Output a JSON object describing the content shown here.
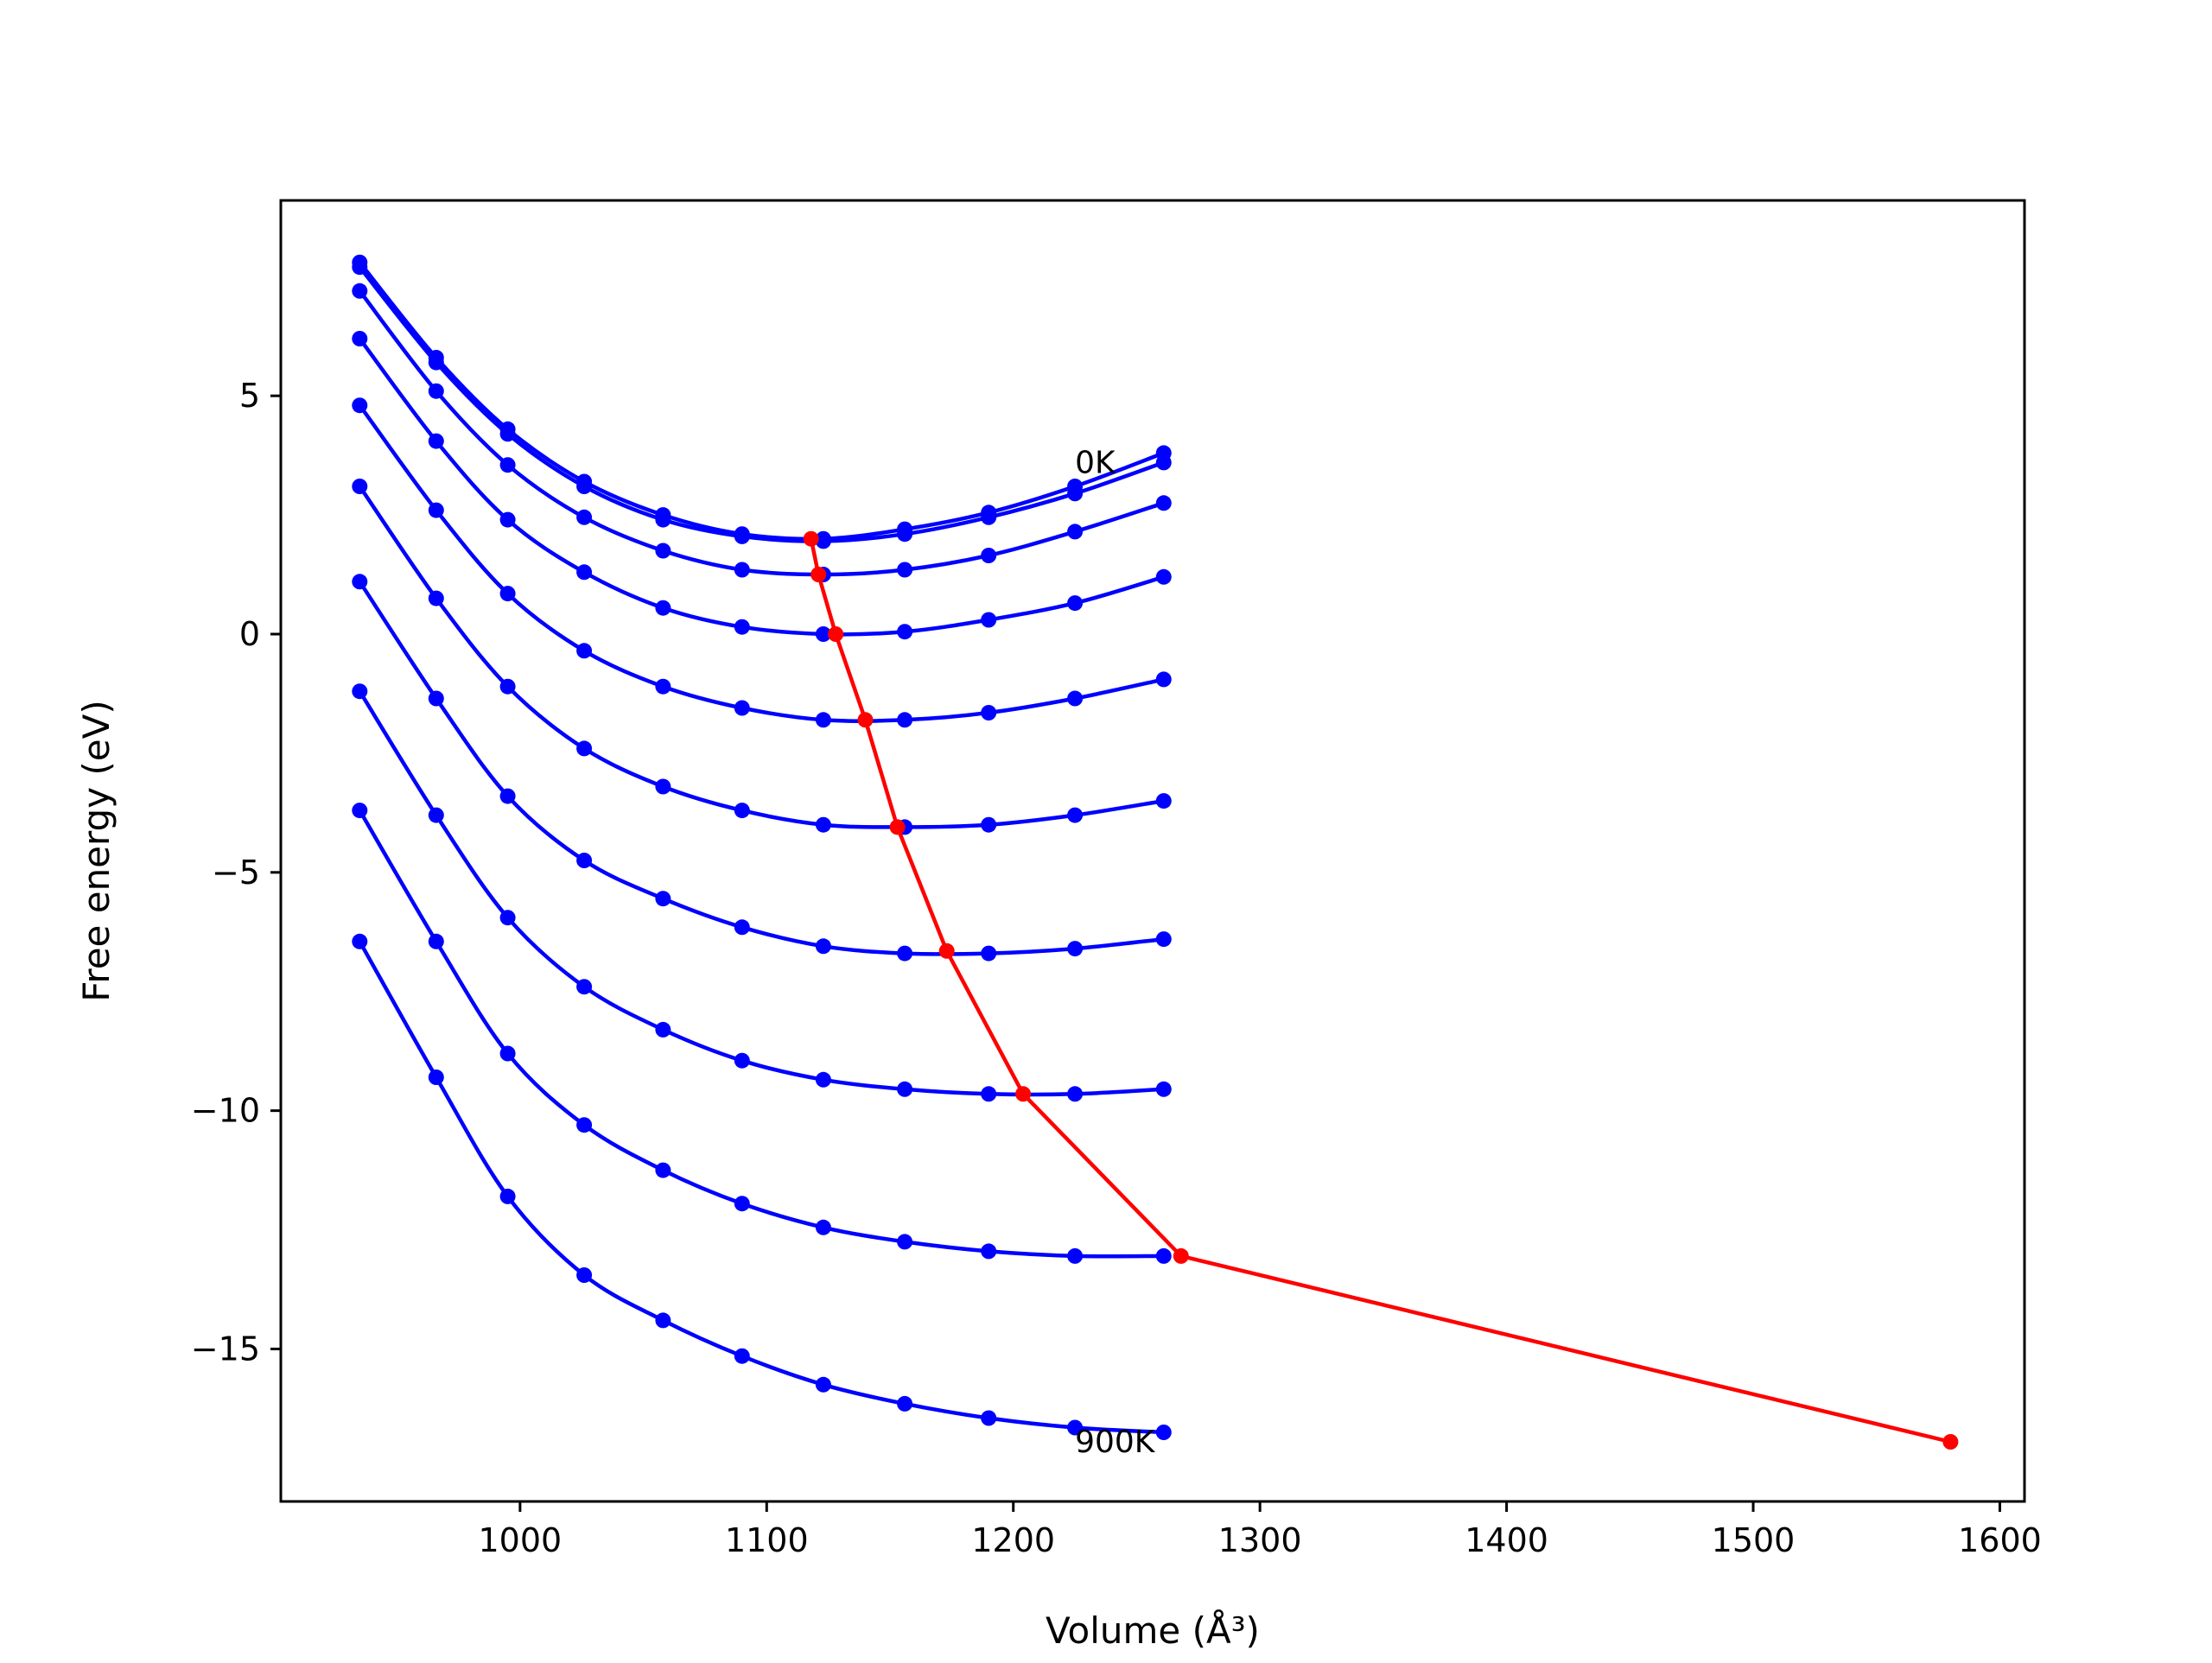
{
  "chart_data": {
    "type": "line",
    "title": "",
    "xlabel": "Volume (Å³)",
    "ylabel": "Free energy (eV)",
    "xlim": [
      903,
      1610
    ],
    "ylim": [
      -18.2,
      9.1
    ],
    "xticks": [
      1000,
      1100,
      1200,
      1300,
      1400,
      1500,
      1600
    ],
    "xtick_labels": [
      "1000",
      "1100",
      "1200",
      "1300",
      "1400",
      "1500",
      "1600"
    ],
    "yticks": [
      5,
      0,
      -5,
      -10,
      -15
    ],
    "ytick_labels": [
      "5",
      "0",
      "−5",
      "−10",
      "−15"
    ],
    "grid": false,
    "legend": "none",
    "colors": {
      "curves": "#0000ff",
      "equilibrium": "#ff0000"
    },
    "volumes": [
      935,
      966,
      995,
      1026,
      1058,
      1090,
      1123,
      1156,
      1190,
      1225,
      1261
    ],
    "series": [
      {
        "values": [
          7.8,
          5.8,
          4.3,
          3.2,
          2.5,
          2.1,
          2.0,
          2.2,
          2.55,
          3.1,
          3.8
        ]
      },
      {
        "values": [
          7.7,
          5.7,
          4.2,
          3.1,
          2.4,
          2.05,
          1.95,
          2.1,
          2.45,
          2.95,
          3.6
        ]
      },
      {
        "values": [
          7.2,
          5.1,
          3.55,
          2.45,
          1.75,
          1.35,
          1.25,
          1.35,
          1.65,
          2.15,
          2.75
        ]
      },
      {
        "values": [
          6.2,
          4.05,
          2.4,
          1.3,
          0.55,
          0.15,
          0.0,
          0.05,
          0.3,
          0.65,
          1.2
        ]
      },
      {
        "values": [
          4.8,
          2.6,
          0.85,
          -0.35,
          -1.1,
          -1.55,
          -1.8,
          -1.8,
          -1.65,
          -1.35,
          -0.95
        ]
      },
      {
        "values": [
          3.1,
          0.75,
          -1.1,
          -2.4,
          -3.2,
          -3.7,
          -4.0,
          -4.05,
          -4.0,
          -3.8,
          -3.5
        ]
      },
      {
        "values": [
          1.1,
          -1.35,
          -3.4,
          -4.75,
          -5.55,
          -6.15,
          -6.55,
          -6.7,
          -6.7,
          -6.6,
          -6.4
        ]
      },
      {
        "values": [
          -1.2,
          -3.8,
          -5.95,
          -7.4,
          -8.3,
          -8.95,
          -9.35,
          -9.55,
          -9.65,
          -9.65,
          -9.55
        ]
      },
      {
        "values": [
          -3.7,
          -6.45,
          -8.8,
          -10.3,
          -11.25,
          -11.95,
          -12.45,
          -12.75,
          -12.95,
          -13.05,
          -13.05
        ]
      },
      {
        "values": [
          -6.45,
          -9.3,
          -11.8,
          -13.45,
          -14.4,
          -15.15,
          -15.75,
          -16.15,
          -16.45,
          -16.65,
          -16.75
        ]
      }
    ],
    "equilibrium": {
      "x": [
        1118,
        1121,
        1128,
        1140,
        1153,
        1173,
        1204,
        1268,
        1580
      ],
      "y": [
        2.0,
        1.25,
        0.0,
        -1.8,
        -4.05,
        -6.65,
        -9.65,
        -13.05,
        -16.95
      ]
    },
    "annotations": [
      {
        "text": "0K",
        "x": 1225,
        "y": 3.6
      },
      {
        "text": "900K",
        "x": 1225,
        "y": -16.95
      }
    ]
  }
}
